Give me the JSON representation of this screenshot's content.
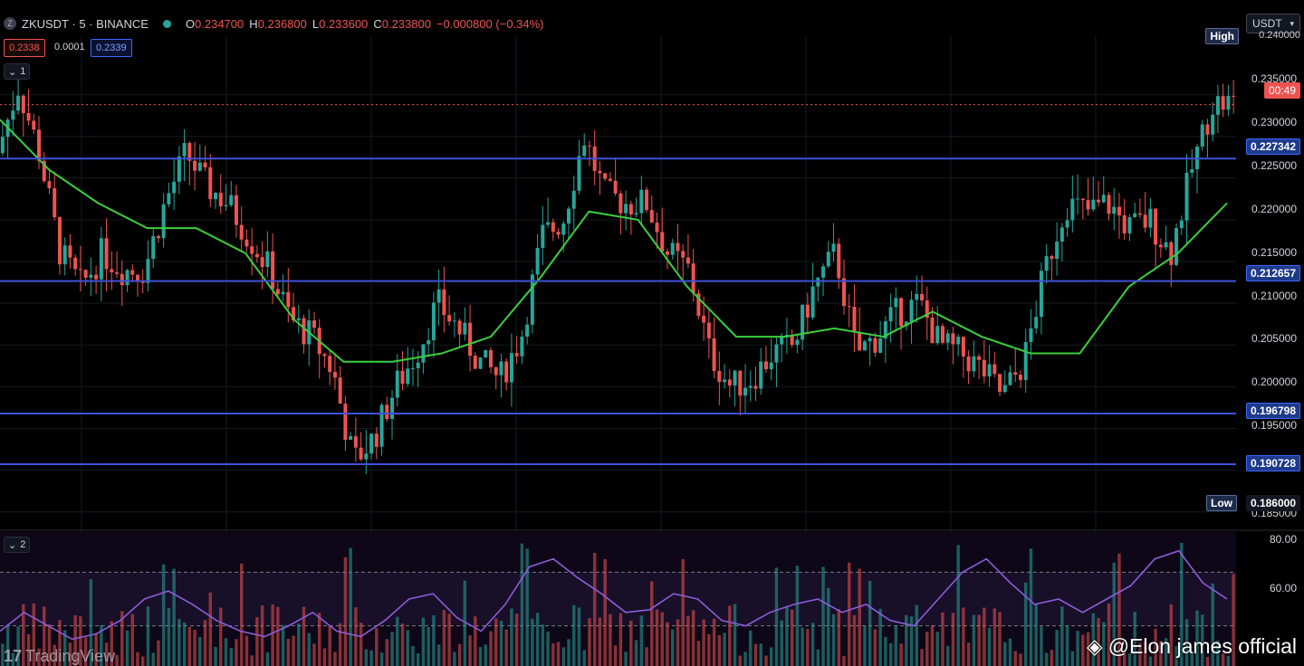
{
  "header": {
    "symbol": "ZKUSDT · 5 · BINANCE",
    "symbol_icon": "Z",
    "open_label": "O",
    "open": "0.234700",
    "high_label": "H",
    "high": "0.236800",
    "low_label": "L",
    "low": "0.233600",
    "close_label": "C",
    "close": "0.233800",
    "change": "−0.000800 (−0.34%)"
  },
  "quote": {
    "bid": "0.2338",
    "spread": "0.0001",
    "ask": "0.2339"
  },
  "currency_select": {
    "value": "USDT"
  },
  "panes": {
    "main_label": "1",
    "rsi_label": "2"
  },
  "price_axis": {
    "ticks": [
      "0.235000",
      "0.230000",
      "0.225000",
      "0.220000",
      "0.215000",
      "0.210000",
      "0.205000",
      "0.200000",
      "0.195000",
      "0.185000"
    ],
    "high_tag": "High",
    "high_value": "0.240000",
    "low_tag": "Low",
    "low_value": "0.186000",
    "countdown": "00:49"
  },
  "rsi_axis": {
    "ticks": [
      "80.00",
      "60.00"
    ]
  },
  "colors": {
    "up": "#26a69a",
    "down": "#ef5350",
    "ma": "#3ccf3c",
    "levels": "#3f51d8",
    "rsi": "#8d5cd8"
  },
  "chart_data": {
    "type": "candlestick",
    "y_range": [
      0.184,
      0.242
    ],
    "current_price": 0.2338,
    "horizontal_levels": [
      0.227342,
      0.212657,
      0.196798,
      0.190728
    ],
    "level_labels": [
      "0.227342",
      "0.212657",
      "0.196798",
      "0.190728"
    ],
    "price_path": [
      0.228,
      0.236,
      0.228,
      0.216,
      0.212,
      0.216,
      0.214,
      0.214,
      0.222,
      0.228,
      0.224,
      0.222,
      0.218,
      0.214,
      0.208,
      0.206,
      0.202,
      0.191,
      0.194,
      0.2,
      0.204,
      0.21,
      0.207,
      0.203,
      0.201,
      0.206,
      0.218,
      0.22,
      0.23,
      0.223,
      0.222,
      0.222,
      0.216,
      0.214,
      0.204,
      0.2,
      0.201,
      0.204,
      0.205,
      0.212,
      0.216,
      0.204,
      0.206,
      0.209,
      0.21,
      0.205,
      0.204,
      0.202,
      0.199,
      0.203,
      0.214,
      0.222,
      0.221,
      0.222,
      0.219,
      0.22,
      0.216,
      0.226,
      0.234,
      0.234
    ],
    "ma_path": [
      0.232,
      0.226,
      0.222,
      0.219,
      0.219,
      0.216,
      0.208,
      0.203,
      0.203,
      0.204,
      0.206,
      0.213,
      0.221,
      0.22,
      0.212,
      0.206,
      0.206,
      0.207,
      0.206,
      0.209,
      0.206,
      0.204,
      0.204,
      0.212,
      0.216,
      0.222
    ],
    "rsi_range": [
      35,
      85
    ],
    "rsi_levels": [
      70,
      50
    ],
    "rsi_path": [
      48,
      55,
      50,
      45,
      47,
      52,
      60,
      63,
      58,
      52,
      48,
      46,
      50,
      55,
      48,
      46,
      52,
      60,
      62,
      53,
      48,
      58,
      72,
      75,
      68,
      62,
      55,
      56,
      62,
      60,
      52,
      50,
      55,
      58,
      60,
      55,
      58,
      52,
      50,
      60,
      70,
      75,
      66,
      58,
      60,
      55,
      60,
      65,
      75,
      78,
      66,
      60
    ]
  },
  "watermark": "TradingView",
  "credit": "@Elon james official"
}
